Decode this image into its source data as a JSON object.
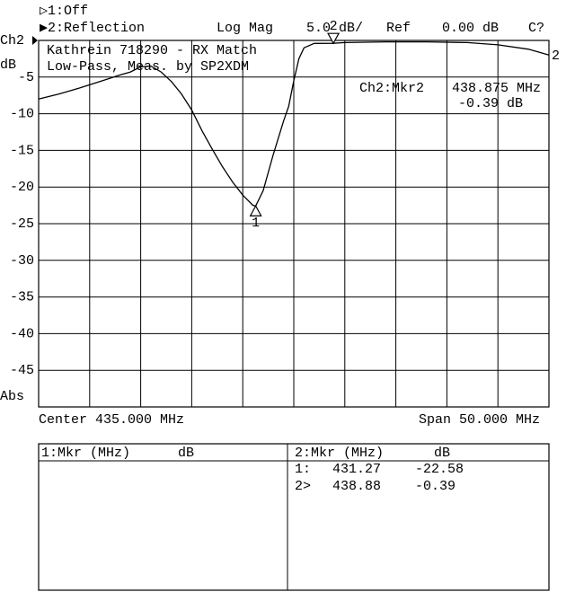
{
  "header": {
    "ch1": "▷1:Off",
    "ch2": "▶2:Reflection",
    "format": "Log Mag",
    "scale": "5.0 dB/",
    "ref_label": "Ref",
    "ref_value": "0.00 dB",
    "cal": "C?"
  },
  "chart_data": {
    "type": "line",
    "channel_label": "Ch2",
    "unit_label": "dB",
    "mode_label": "Abs",
    "title": "Kathrein 718290 - RX Match",
    "subtitle": "Low-Pass, Meas. by SP2XDM",
    "readout": {
      "name": "Ch2:Mkr2",
      "freq": "438.875 MHz",
      "value": "-0.39 dB"
    },
    "center": "Center 435.000 MHz",
    "span": "Span 50.000 MHz",
    "trace_label": "2",
    "xlim": [
      410,
      460
    ],
    "ylim": [
      -50,
      0
    ],
    "yticks": [
      -45,
      -40,
      -35,
      -30,
      -25,
      -20,
      -15,
      -10,
      -5
    ],
    "grid": true,
    "x_divisions": 10,
    "x": [
      410,
      412,
      414,
      416,
      418,
      419,
      420,
      421,
      422,
      423,
      424,
      425,
      426,
      427,
      428,
      429,
      430,
      431,
      431.27,
      432,
      433,
      434,
      434.5,
      435,
      435.5,
      436,
      437,
      438.88,
      440,
      444,
      448,
      452,
      455,
      458,
      460
    ],
    "series": [
      {
        "name": "Reflection",
        "color": "#000000",
        "values": [
          -8.0,
          -7.3,
          -6.5,
          -5.6,
          -4.7,
          -4.3,
          -3.6,
          -3.5,
          -4.3,
          -5.6,
          -7.3,
          -9.5,
          -12.3,
          -14.8,
          -17.2,
          -19.3,
          -21.1,
          -22.5,
          -22.58,
          -20.5,
          -15.5,
          -11.0,
          -9.0,
          -5.5,
          -2.5,
          -1.0,
          -0.4,
          -0.39,
          -0.3,
          -0.2,
          -0.2,
          -0.3,
          -0.6,
          -1.2,
          -2.0
        ]
      }
    ],
    "markers": [
      {
        "label": "1",
        "x": 431.27,
        "y": -22.58,
        "side": "below"
      },
      {
        "label": "2",
        "x": 438.88,
        "y": -0.39,
        "side": "above"
      }
    ]
  },
  "marker_table": {
    "left_header": [
      "1:Mkr (MHz)",
      "dB"
    ],
    "right_header": [
      "2:Mkr (MHz)",
      "dB"
    ],
    "rows": [
      [
        "1:",
        "431.27",
        "-22.58"
      ],
      [
        "2>",
        "438.88",
        "-0.39"
      ]
    ]
  }
}
